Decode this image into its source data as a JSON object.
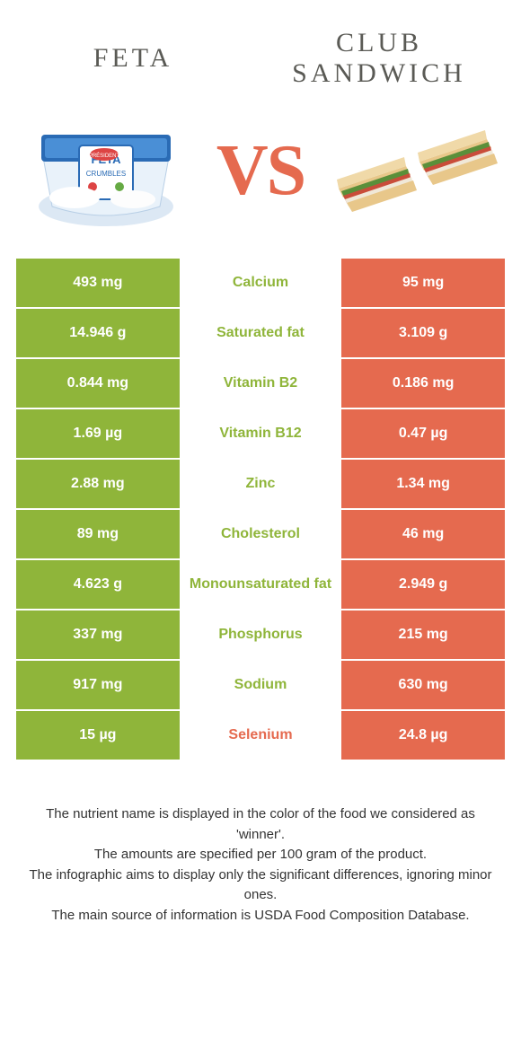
{
  "food_left": {
    "name": "FETA"
  },
  "food_right": {
    "name": "CLUB SANDWICH"
  },
  "vs_label": "VS",
  "colors": {
    "left": "#8fb53a",
    "right": "#e56a4f",
    "mid_bg": "#ffffff",
    "mid_text_left": "#8fb53a",
    "mid_text_right": "#e56a4f"
  },
  "rows": [
    {
      "nutrient": "Calcium",
      "left": "493 mg",
      "right": "95 mg",
      "winner": "left"
    },
    {
      "nutrient": "Saturated fat",
      "left": "14.946 g",
      "right": "3.109 g",
      "winner": "left"
    },
    {
      "nutrient": "Vitamin B2",
      "left": "0.844 mg",
      "right": "0.186 mg",
      "winner": "left"
    },
    {
      "nutrient": "Vitamin B12",
      "left": "1.69 µg",
      "right": "0.47 µg",
      "winner": "left"
    },
    {
      "nutrient": "Zinc",
      "left": "2.88 mg",
      "right": "1.34 mg",
      "winner": "left"
    },
    {
      "nutrient": "Cholesterol",
      "left": "89 mg",
      "right": "46 mg",
      "winner": "left"
    },
    {
      "nutrient": "Monounsaturated fat",
      "left": "4.623 g",
      "right": "2.949 g",
      "winner": "left"
    },
    {
      "nutrient": "Phosphorus",
      "left": "337 mg",
      "right": "215 mg",
      "winner": "left"
    },
    {
      "nutrient": "Sodium",
      "left": "917 mg",
      "right": "630 mg",
      "winner": "left"
    },
    {
      "nutrient": "Selenium",
      "left": "15 µg",
      "right": "24.8 µg",
      "winner": "right"
    }
  ],
  "footer": {
    "line1": "The nutrient name is displayed in the color of the food we considered as 'winner'.",
    "line2": "The amounts are specified per 100 gram of the product.",
    "line3": "The infographic aims to display only the significant differences, ignoring minor ones.",
    "line4": "The main source of information is USDA Food Composition Database."
  }
}
